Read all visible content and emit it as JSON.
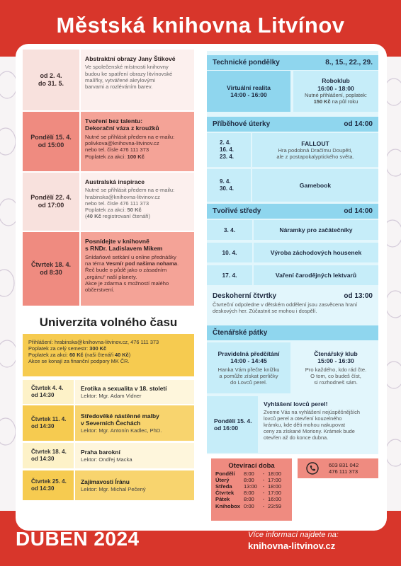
{
  "header": {
    "title": "Městská knihovna Litvínov"
  },
  "events": [
    {
      "date": [
        "od 2. 4.",
        "do 31. 5."
      ],
      "title": [
        "Abstraktní obrazy Jany Štikové"
      ],
      "text": [
        "Ve společenské místnosti knihovny",
        "budou ke spatření obrazy litvínovské",
        "malířky, vytvářené akrylovými",
        "barvami a rozléváním barev."
      ]
    },
    {
      "date": [
        "Pondělí 15. 4.",
        "od 15:00"
      ],
      "title": [
        "Tvoření bez talentu:",
        "Dekorační váza z kroužků"
      ],
      "text": [
        "Nutné se přihlásit předem na e-mailu:",
        "polivkova@knihovna-litvinov.cz",
        "nebo tel. čísle 476 111 373",
        [
          "Poplatek za akci: ",
          {
            "bold": "100 Kč"
          }
        ]
      ]
    },
    {
      "date": [
        "Pondělí 22. 4.",
        "od 17:00"
      ],
      "title": [
        "Australská inspirace"
      ],
      "text": [
        "Nutné se přihlásit předem na e-mailu:",
        "hrabinska@knihovna-litvinov.cz",
        "nebo tel. čísle 476 111 373",
        [
          "Poplatek za akci: ",
          {
            "bold": "50 Kč"
          }
        ],
        [
          "(",
          {
            "bold": "40 Kč"
          },
          " registrovaní čtenáři)"
        ]
      ]
    },
    {
      "date": [
        "Čtvrtek 18. 4.",
        "od 8:30"
      ],
      "title": [
        "Posnídejte v knihovně",
        "s RNDr. Ladislavem Mikem"
      ],
      "text": [
        "Snídaňové setkání u online přednášky",
        [
          "na téma ",
          {
            "bold": "Vesmír pod našima nohama"
          },
          "."
        ],
        "Řeč bude o půdě jako o zásadním",
        "„orgánu“ naší planety.",
        "Akce je zdarma s možností malého",
        "občerstvení."
      ]
    }
  ],
  "university": {
    "title": "Univerzita volného času",
    "info": [
      "Přihlášení: hrabinska@knihovna-litvinov.cz, 476 111 373",
      [
        "Poplatek za celý semestr: ",
        {
          "bold": "300 Kč"
        }
      ],
      [
        "Poplatek za akci: ",
        {
          "bold": "60 Kč"
        },
        " (naši čtenáři ",
        {
          "bold": "40 Kč"
        },
        ")"
      ],
      "Akce se konají za finanční podpory MK ČR."
    ],
    "lectures": [
      {
        "date": [
          "Čtvrtek 4. 4.",
          "od 14:30"
        ],
        "title": [
          "Erotika a sexualita v 18. století"
        ],
        "lecturer": "Lektor: Mgr. Adam Vidner"
      },
      {
        "date": [
          "Čtvrtek  11. 4.",
          "od 14:30"
        ],
        "title": [
          "Středověké nástěnné malby",
          "v Severních Čechách"
        ],
        "lecturer": "Lektor: Mgr. Antonín Kadlec, PhD."
      },
      {
        "date": [
          "Čtvrtek 18. 4.",
          "od 14:30"
        ],
        "title": [
          "Praha barokní"
        ],
        "lecturer": "Lektor: Ondřej Macka"
      },
      {
        "date": [
          "Čtvrtek 25. 4.",
          "od 14:30"
        ],
        "title": [
          "Zajímavosti Íránu"
        ],
        "lecturer": "Lektor: Mgr. Michal Pečený"
      }
    ]
  },
  "technical": {
    "title": "Technické pondělky",
    "dates": "8., 15., 22., 29.",
    "items": [
      {
        "title": "Virtuální realita",
        "time": "14:00 - 16:00"
      },
      {
        "title": "Roboklub",
        "time": "16:00 - 18:00",
        "text": [
          "Nutné přihlášení, poplatek:",
          [
            {
              "bold": "150 Kč"
            },
            " na půl roku"
          ]
        ]
      }
    ]
  },
  "stories": {
    "title": "Příběhové úterky",
    "time": "od 14:00",
    "items": [
      {
        "dates": [
          "2. 4.",
          "16. 4.",
          "23. 4."
        ],
        "title": "FALLOUT",
        "text": [
          "Hra podobná Dračímu Doupěti,",
          "ale z postapokalyptického světa."
        ]
      },
      {
        "dates": [
          "9. 4.",
          "30. 4."
        ],
        "title": "Gamebook"
      }
    ]
  },
  "creative": {
    "title": "Tvořivé středy",
    "time": "od 14:00",
    "items": [
      {
        "date": "3. 4.",
        "title": "Náramky pro začátečníky"
      },
      {
        "date": "10. 4.",
        "title": "Výroba záchodových housenek"
      },
      {
        "date": "17. 4.",
        "title": "Vaření čarodějných lektvarů"
      }
    ]
  },
  "board": {
    "title": "Deskoherní čtvrtky",
    "time": "od 13:00",
    "text": [
      "Čtvrteční odpoledne v dětském oddělení jsou zasvěcena hraní",
      "deskových her. Zúčastnit se mohou i dospělí."
    ]
  },
  "reading": {
    "title": "Čtenářské pátky",
    "items": [
      {
        "title": "Pravidelná předčítání",
        "time": "14:00 - 14:45",
        "text": [
          "Hanka Vám přečte knížku",
          "a pomůže získat perličky",
          "do Lovců perel."
        ]
      },
      {
        "title": "Čtenářský klub",
        "time": "15:00 - 16:30",
        "text": [
          "Pro každého, kdo rád čte.",
          "O tom, co budeš číst,",
          "si rozhodneš sám."
        ]
      }
    ],
    "event": {
      "date": [
        "Pondělí 15. 4.",
        "od 16:00"
      ],
      "title": "Vyhlášení lovců perel!",
      "text": [
        "Zveme Vás na vyhlášení nejúspěšnějších",
        "lovců perel a otevření kouzelného",
        "krámku, kde děti mohou nakupovat",
        "ceny za získané Moriony. Krámek bude",
        "otevřen až do konce dubna."
      ]
    }
  },
  "hours": {
    "title": "Otevírací doba",
    "rows": [
      [
        "Pondělí",
        "8:00",
        "-",
        "18:00"
      ],
      [
        "Úterý",
        "8:00",
        "-",
        "17:00"
      ],
      [
        "Středa",
        "13:00",
        "-",
        "18:00"
      ],
      [
        "Čtvrtek",
        "8:00",
        "-",
        "17:00"
      ],
      [
        "Pátek",
        "8:00",
        "-",
        "16:00"
      ],
      [
        "Knihobox",
        "0:00",
        "-",
        "23:59"
      ]
    ]
  },
  "contact": {
    "phones": [
      "603 831 042",
      "476 111 373"
    ]
  },
  "footer": {
    "month": "DUBEN 2024",
    "more": "Více informací najdete na:",
    "web": "knihovna-litvinov.cz"
  }
}
